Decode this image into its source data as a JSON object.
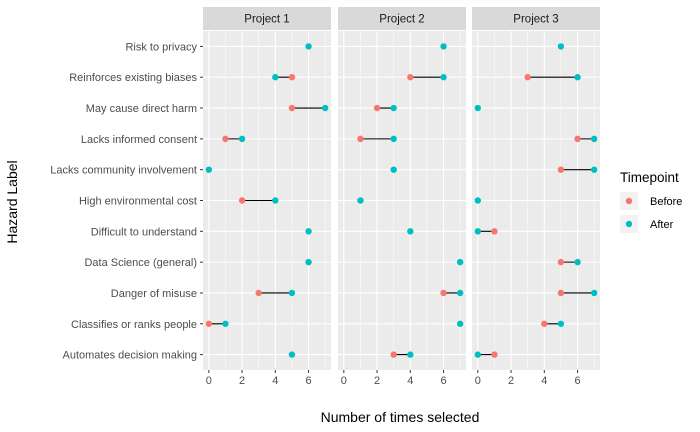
{
  "chart_data": {
    "type": "dumbbell",
    "xlabel": "Number of times selected",
    "ylabel": "Hazard Label",
    "xlim": [
      -0.35,
      7.35
    ],
    "xticks": [
      0,
      2,
      4,
      6
    ],
    "grid": true,
    "legend_position": "right",
    "legend": {
      "title": "Timepoint",
      "entries": [
        {
          "label": "Before",
          "color": "#F8766D"
        },
        {
          "label": "After",
          "color": "#00BFC4"
        }
      ]
    },
    "categories": [
      "Risk to privacy",
      "Reinforces existing biases",
      "May cause direct harm",
      "Lacks informed consent",
      "Lacks community involvement",
      "High environmental cost",
      "Difficult to understand",
      "Data Science (general)",
      "Danger of misuse",
      "Classifies or ranks people",
      "Automates decision making"
    ],
    "panels": [
      {
        "title": "Project 1",
        "values": [
          {
            "before": null,
            "after": 6
          },
          {
            "before": 5,
            "after": 4
          },
          {
            "before": 5,
            "after": 7
          },
          {
            "before": 1,
            "after": 2
          },
          {
            "before": null,
            "after": 0
          },
          {
            "before": 2,
            "after": 4
          },
          {
            "before": null,
            "after": 6
          },
          {
            "before": null,
            "after": 6
          },
          {
            "before": 3,
            "after": 5
          },
          {
            "before": 0,
            "after": 1
          },
          {
            "before": null,
            "after": 5
          }
        ]
      },
      {
        "title": "Project 2",
        "values": [
          {
            "before": null,
            "after": 6
          },
          {
            "before": 4,
            "after": 6
          },
          {
            "before": 2,
            "after": 3
          },
          {
            "before": 1,
            "after": 3
          },
          {
            "before": null,
            "after": 3
          },
          {
            "before": null,
            "after": 1
          },
          {
            "before": null,
            "after": 4
          },
          {
            "before": null,
            "after": 7
          },
          {
            "before": 6,
            "after": 7
          },
          {
            "before": null,
            "after": 7
          },
          {
            "before": 3,
            "after": 4
          }
        ]
      },
      {
        "title": "Project 3",
        "values": [
          {
            "before": null,
            "after": 5
          },
          {
            "before": 3,
            "after": 6
          },
          {
            "before": null,
            "after": 0
          },
          {
            "before": 6,
            "after": 7
          },
          {
            "before": 5,
            "after": 7
          },
          {
            "before": null,
            "after": 0
          },
          {
            "before": 1,
            "after": 0
          },
          {
            "before": 5,
            "after": 6
          },
          {
            "before": 5,
            "after": 7
          },
          {
            "before": 4,
            "after": 5
          },
          {
            "before": 1,
            "after": 0
          }
        ]
      }
    ]
  }
}
